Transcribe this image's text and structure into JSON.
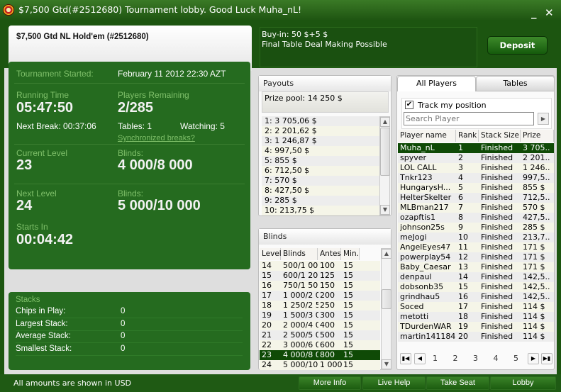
{
  "window": {
    "title": "$7,500 Gtd(#2512680) Tournament lobby. Good Luck Muha_nL!",
    "minimize": "_",
    "close": "✕"
  },
  "header": {
    "title": "$7,500 Gtd NL Hold'em (#2512680)",
    "buyin": "Buy-in: 50 $+5 $",
    "deal": "Final Table Deal Making Possible",
    "deposit": "Deposit"
  },
  "main": {
    "started_label": "Tournament Started:",
    "started_value": "February 11 2012  22:30 AZT",
    "running_label": "Running Time",
    "running_value": "05:47:50",
    "players_label": "Players Remaining",
    "players_value": "2/285",
    "next_break": "Next Break: 00:37:06",
    "tables": "Tables: 1",
    "watching": "Watching: 5",
    "sync_link": "Synchronized breaks?",
    "cur_level_label": "Current Level",
    "cur_level_value": "23",
    "cur_blinds_label": "Blinds:",
    "cur_blinds_value": "4 000/8 000",
    "next_level_label": "Next Level",
    "next_level_value": "24",
    "next_blinds_label": "Blinds:",
    "next_blinds_value": "5 000/10 000",
    "starts_label": "Starts In",
    "starts_value": "00:04:42"
  },
  "stacks": {
    "title": "Stacks",
    "rows": [
      {
        "label": "Chips in Play:",
        "value": "0"
      },
      {
        "label": "Largest Stack:",
        "value": "0"
      },
      {
        "label": "Average Stack:",
        "value": "0"
      },
      {
        "label": "Smallest Stack:",
        "value": "0"
      }
    ]
  },
  "payouts": {
    "title": "Payouts",
    "prize_pool": "Prize pool: 14 250 $",
    "items": [
      "1: 3 705,06 $",
      "2: 2 201,62 $",
      "3: 1 246,87 $",
      "4: 997,50 $",
      "5: 855 $",
      "6: 712,50 $",
      "7: 570 $",
      "8: 427,50 $",
      "9: 285 $",
      "10: 213,75 $"
    ]
  },
  "blinds": {
    "title": "Blinds",
    "columns": [
      "Levels",
      "Blinds",
      "Antes",
      "Min."
    ],
    "selected_level": "23",
    "rows": [
      [
        "14",
        "500/1 000",
        "100",
        "15"
      ],
      [
        "15",
        "600/1 200",
        "125",
        "15"
      ],
      [
        "16",
        "750/1 500",
        "150",
        "15"
      ],
      [
        "17",
        "1 000/2 000",
        "200",
        "15"
      ],
      [
        "18",
        "1 250/2 500",
        "250",
        "15"
      ],
      [
        "19",
        "1 500/3 000",
        "300",
        "15"
      ],
      [
        "20",
        "2 000/4 000",
        "400",
        "15"
      ],
      [
        "21",
        "2 500/5 000",
        "500",
        "15"
      ],
      [
        "22",
        "3 000/6 000",
        "600",
        "15"
      ],
      [
        "23",
        "4 000/8 000",
        "800",
        "15"
      ],
      [
        "24",
        "5 000/10 000",
        "1 000",
        "15"
      ]
    ]
  },
  "players": {
    "tabs": [
      "All Players",
      "Tables"
    ],
    "active_tab": "All Players",
    "track_label": "Track my position",
    "track_checked": true,
    "search_placeholder": "Search Player",
    "columns": [
      "Player name",
      "Rank",
      "Stack Size",
      "Prize"
    ],
    "selected_player": "Muha_nL",
    "rows": [
      [
        "Muha_nL",
        "1",
        "Finished",
        "3 705.."
      ],
      [
        "spyver",
        "2",
        "Finished",
        "2 201.."
      ],
      [
        "LOL CALL",
        "3",
        "Finished",
        "1 246.."
      ],
      [
        "Tnkr123",
        "4",
        "Finished",
        "997,5.."
      ],
      [
        "HungarysH...",
        "5",
        "Finished",
        "855 $"
      ],
      [
        "HelterSkelter",
        "6",
        "Finished",
        "712,5.."
      ],
      [
        "MLBman217",
        "7",
        "Finished",
        "570 $"
      ],
      [
        "ozapftis1",
        "8",
        "Finished",
        "427,5.."
      ],
      [
        "johnson25s",
        "9",
        "Finished",
        "285 $"
      ],
      [
        "meJogi",
        "10",
        "Finished",
        "213,7.."
      ],
      [
        "AngelEyes47",
        "11",
        "Finished",
        "171 $"
      ],
      [
        "powerplay54",
        "12",
        "Finished",
        "171 $"
      ],
      [
        "Baby_Caesar",
        "13",
        "Finished",
        "171 $"
      ],
      [
        "denpaul",
        "14",
        "Finished",
        "142,5.."
      ],
      [
        "dobsonb35",
        "15",
        "Finished",
        "142,5.."
      ],
      [
        "grindhau5",
        "16",
        "Finished",
        "142,5.."
      ],
      [
        "Soced",
        "17",
        "Finished",
        "114 $"
      ],
      [
        "metotti",
        "18",
        "Finished",
        "114 $"
      ],
      [
        "TDurdenWAR",
        "19",
        "Finished",
        "114 $"
      ],
      [
        "martin141184",
        "20",
        "Finished",
        "114 $"
      ]
    ],
    "pages": [
      "1",
      "2",
      "3",
      "4",
      "5"
    ]
  },
  "footer": {
    "note": "All amounts are shown in USD",
    "buttons": [
      "More Info",
      "Live Help",
      "Take Seat",
      "Lobby"
    ]
  },
  "colors": {
    "brand_green": "#256b1f",
    "selected_row": "#0f4a06",
    "label_green": "#7fc06a"
  }
}
